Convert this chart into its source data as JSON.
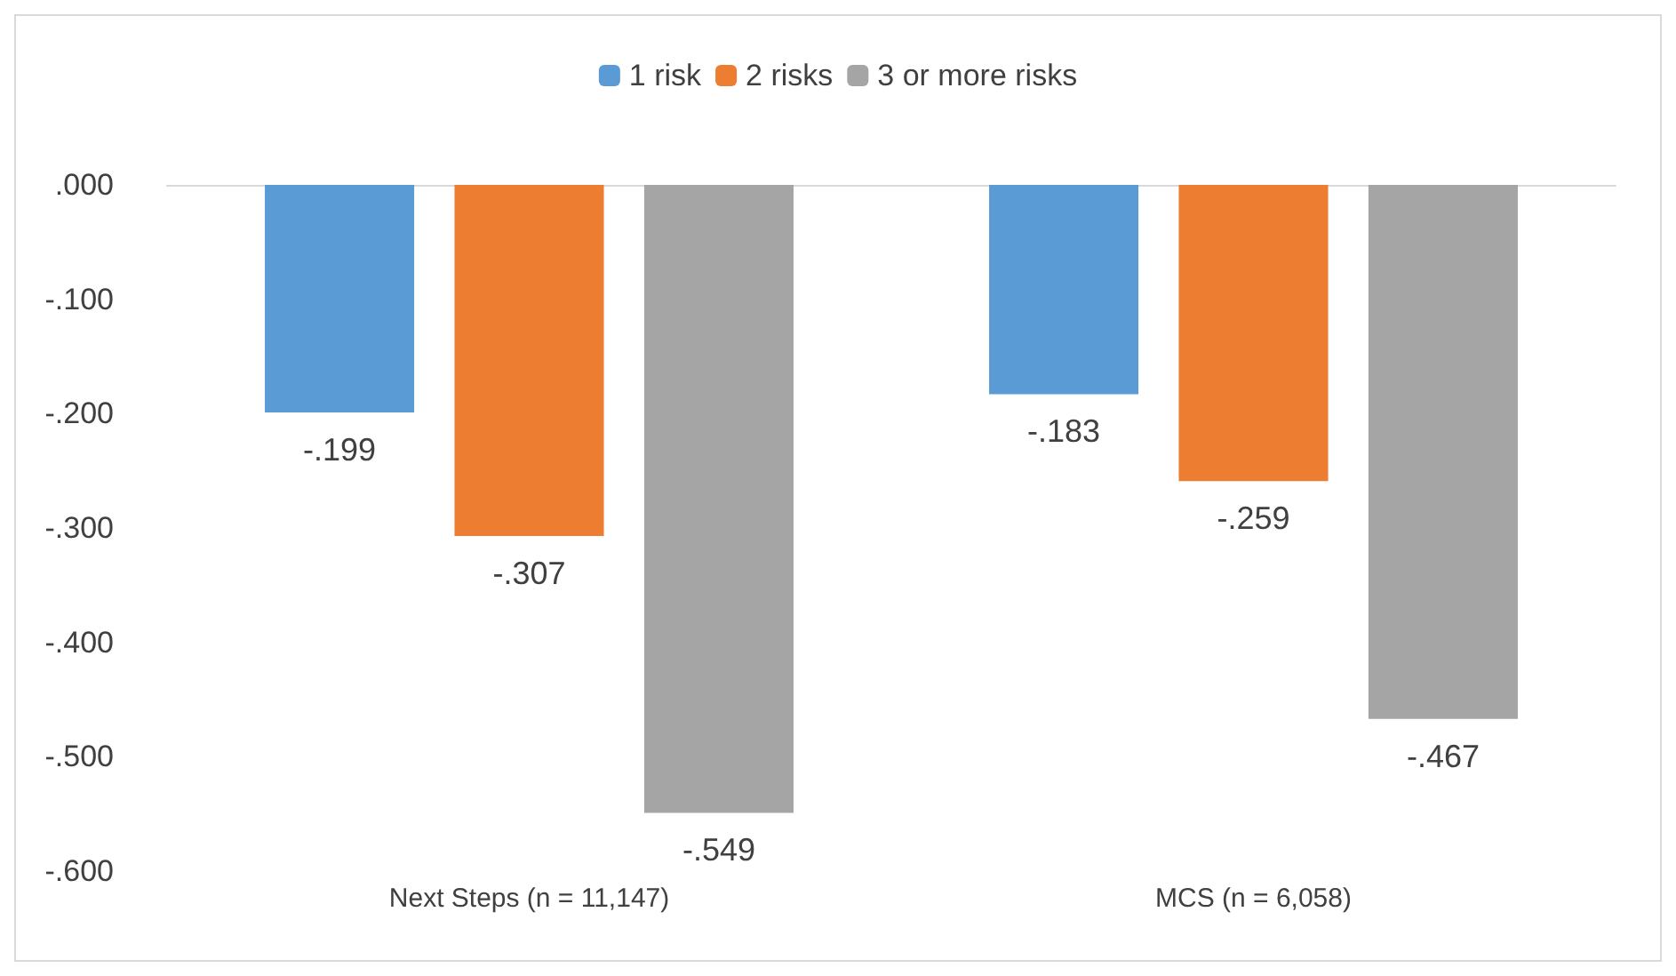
{
  "chart_data": {
    "type": "bar",
    "categories": [
      "Next Steps (n = 11,147)",
      "MCS (n = 6,058)"
    ],
    "series": [
      {
        "name": "1 risk",
        "color": "#5b9bd5",
        "values": [
          -0.199,
          -0.183
        ],
        "value_labels": [
          "-.199",
          "-.183"
        ]
      },
      {
        "name": "2 risks",
        "color": "#ed7d31",
        "values": [
          -0.307,
          -0.259
        ],
        "value_labels": [
          "-.307",
          "-.259"
        ]
      },
      {
        "name": "3 or more risks",
        "color": "#a5a5a5",
        "values": [
          -0.549,
          -0.467
        ],
        "value_labels": [
          "-.549",
          "-.467"
        ]
      }
    ],
    "ylim": [
      -0.6,
      0
    ],
    "yticks": [
      {
        "value": 0,
        "label": ".000"
      },
      {
        "value": -0.1,
        "label": "-.100"
      },
      {
        "value": -0.2,
        "label": "-.200"
      },
      {
        "value": -0.3,
        "label": "-.300"
      },
      {
        "value": -0.4,
        "label": "-.400"
      },
      {
        "value": -0.5,
        "label": "-.500"
      },
      {
        "value": -0.6,
        "label": "-.600"
      }
    ],
    "grid": false,
    "legend": "top"
  }
}
